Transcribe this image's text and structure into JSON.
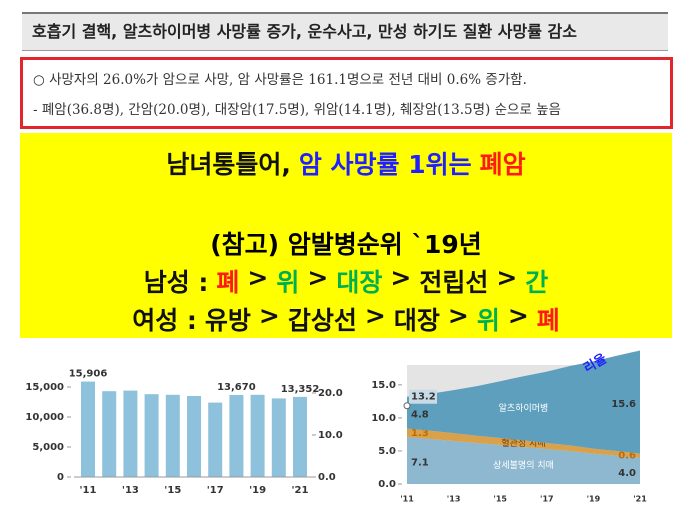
{
  "header": {
    "title": "호흡기 결핵, 알츠하이머병 사망률 증가, 운수사고, 만성 하기도 질환 사망률 감소"
  },
  "summary": {
    "lines": [
      "○  사망자의 26.0%가 암으로 사망, 암 사망률은 161.1명으로 전년 대비 0.6% 증가함.",
      "-  폐암(36.8명), 간암(20.0명), 대장암(17.5명), 위암(14.1명), 췌장암(13.5명) 순으로 높음"
    ]
  },
  "overlay": {
    "headline": [
      {
        "text": "남녀통틀어,",
        "color": "#111111"
      },
      {
        "text": "암 사망률 1위는",
        "color": "#1f1fff"
      },
      {
        "text": "폐암",
        "color": "#ff1a1a"
      }
    ],
    "note": "(참고) 암발병순위 `19년",
    "men": [
      {
        "text": "남성 :",
        "color": "#111111"
      },
      {
        "text": "폐",
        "color": "#ff1a1a"
      },
      {
        "text": ">",
        "color": "#111111"
      },
      {
        "text": "위",
        "color": "#00b050"
      },
      {
        "text": ">",
        "color": "#111111"
      },
      {
        "text": "대장",
        "color": "#00b050"
      },
      {
        "text": ">",
        "color": "#111111"
      },
      {
        "text": "전립선",
        "color": "#111111"
      },
      {
        "text": ">",
        "color": "#111111"
      },
      {
        "text": "간",
        "color": "#00b050"
      }
    ],
    "women": [
      {
        "text": "여성 :",
        "color": "#111111"
      },
      {
        "text": "유방",
        "color": "#111111"
      },
      {
        "text": ">",
        "color": "#111111"
      },
      {
        "text": "갑상선",
        "color": "#111111"
      },
      {
        "text": ">",
        "color": "#111111"
      },
      {
        "text": "대장",
        "color": "#111111"
      },
      {
        "text": ">",
        "color": "#111111"
      },
      {
        "text": "위",
        "color": "#00b050"
      },
      {
        "text": ">",
        "color": "#111111"
      },
      {
        "text": "폐",
        "color": "#ff1a1a"
      }
    ]
  },
  "charts": [
    {
      "type": "bar",
      "color": "#8ec1dc",
      "categories": [
        "'11",
        null,
        "'13",
        null,
        "'15",
        null,
        "'17",
        null,
        "'19",
        null,
        "'21"
      ],
      "values": [
        15906,
        14300,
        14400,
        13800,
        13700,
        13500,
        12400,
        13670,
        13700,
        13100,
        13352
      ],
      "value_labels": [
        "15,906",
        null,
        null,
        null,
        null,
        null,
        null,
        "13,670",
        null,
        null,
        "13,352"
      ],
      "ylim": [
        0,
        18000
      ],
      "yticks": [
        0,
        {
          "value": 5000,
          "label": "5,000"
        },
        {
          "value": 10000,
          "label": "10,000"
        },
        {
          "value": 15000,
          "label": "15,000"
        }
      ],
      "y2lim": [
        0,
        25.7
      ],
      "y2ticks": [
        {
          "value": 0,
          "label": "0.0"
        },
        {
          "value": 10,
          "label": "10.0"
        },
        {
          "value": 20,
          "label": "20.0"
        }
      ]
    },
    {
      "type": "stacked-area",
      "categories": [
        "'11",
        null,
        "'13",
        null,
        "'15",
        null,
        "'17",
        null,
        "'19",
        null,
        "'21"
      ],
      "series": [
        {
          "name": "상세불명의 치매",
          "color": "#8db8cf",
          "values": [
            7.1,
            6.8,
            6.5,
            6.2,
            5.9,
            5.6,
            5.3,
            5.0,
            4.6,
            4.3,
            4.0
          ],
          "value_labels": [
            "7.1",
            null,
            null,
            null,
            null,
            null,
            null,
            null,
            null,
            null,
            "4.0"
          ]
        },
        {
          "name": "혈관성 치매",
          "color": "#d9a24a",
          "values": [
            1.3,
            1.25,
            1.2,
            1.1,
            1.05,
            1.0,
            0.9,
            0.85,
            0.75,
            0.7,
            0.6
          ],
          "value_labels": [
            "1.3",
            null,
            null,
            null,
            null,
            null,
            null,
            null,
            null,
            null,
            "0.6"
          ]
        },
        {
          "name": "알츠하이머병",
          "color": "#5e9fbd",
          "values": [
            4.8,
            5.6,
            6.5,
            7.5,
            8.6,
            9.7,
            10.8,
            12.0,
            13.2,
            14.4,
            15.6
          ],
          "value_labels": [
            "4.8",
            null,
            null,
            null,
            null,
            null,
            null,
            null,
            null,
            null,
            "15.6"
          ]
        }
      ],
      "annotations": [
        {
          "label": "13.2",
          "value": 13.2
        }
      ],
      "fragment": "리율",
      "ylim": [
        0,
        18
      ],
      "yticks": [
        {
          "value": 0,
          "label": "0.0"
        },
        {
          "value": 5,
          "label": "5.0"
        },
        {
          "value": 10,
          "label": "10.0"
        },
        {
          "value": 15,
          "label": "15.0"
        }
      ]
    }
  ]
}
